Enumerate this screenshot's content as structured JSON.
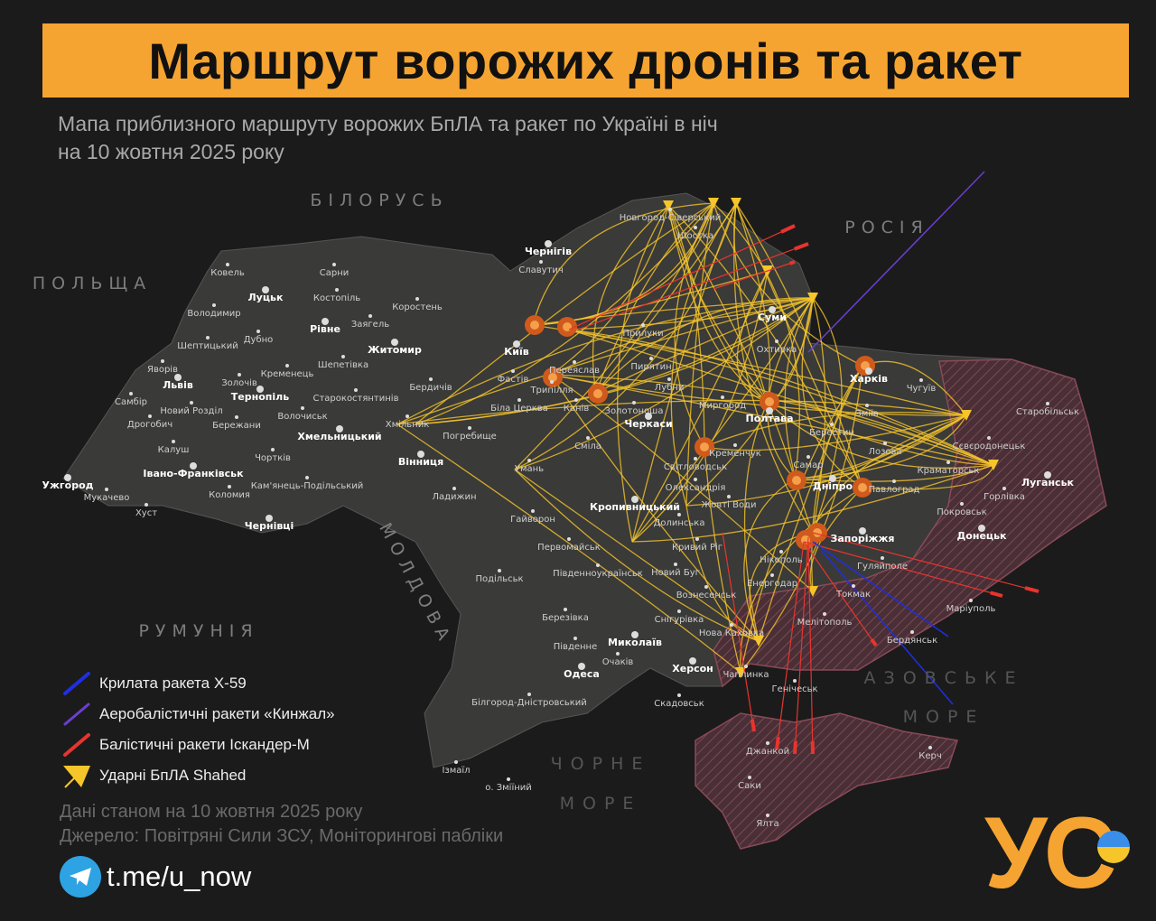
{
  "header": {
    "title": "Маршрут ворожих дронів та ракет",
    "subtitle": "Мапа приблизного маршруту ворожих БпЛА та ракет по Україні в ніч на 10 жовтня 2025 року"
  },
  "countries": [
    "БІЛОРУСЬ",
    "РОСІЯ",
    "ПОЛЬЩА",
    "РУМУНІЯ",
    "МОЛДОВА"
  ],
  "seas": [
    "АЗОВСЬКЕ",
    "МОРЕ",
    "ЧОРНЕ",
    "МОРЕ"
  ],
  "cities": [
    "Ковель",
    "Сарни",
    "Луцьк",
    "Костопіль",
    "Володимир",
    "Рівне",
    "Заягель",
    "Коростень",
    "Чернігів",
    "Славутич",
    "Новгород-Сіверський",
    "Шостка",
    "Шептицький",
    "Дубно",
    "Житомир",
    "Київ",
    "Прилуки",
    "Суми",
    "Охтирка",
    "Яворів",
    "Львів",
    "Кременець",
    "Шепетівка",
    "Бердичів",
    "Переяслав",
    "Пирятин",
    "Лубни",
    "Полтава",
    "Харків",
    "Чугуїв",
    "Самбір",
    "Золочів",
    "Тернопіль",
    "Старокостянтинів",
    "Фастів",
    "Трипілля",
    "Канів",
    "Золотоноша",
    "Дрогобич",
    "Новий Розділ",
    "Бережани",
    "Волочиськ",
    "Хмільник",
    "Біла Церква",
    "Черкаси",
    "Миргород",
    "Кременчук",
    "Берестин",
    "Зміїв",
    "Старобільськ",
    "Сєвєродонецьк",
    "Хмельницький",
    "Погребище",
    "Сміла",
    "Світловодськ",
    "Лозова",
    "Краматорськ",
    "Калуш",
    "Чортків",
    "Вінниця",
    "Умань",
    "Самар",
    "Дніпро",
    "Павлоград",
    "Покровськ",
    "Горлівка",
    "Луганськ",
    "Ужгород",
    "Мукачево",
    "Івано-Франківськ",
    "Кам'янець-Подільський",
    "Ладижин",
    "Олександрія",
    "Жовті Води",
    "Донецьк",
    "Коломия",
    "Хуст",
    "Чернівці",
    "Гайворон",
    "Кропивницький",
    "Долинська",
    "Запоріжжя",
    "Гуляйполе",
    "Первомайськ",
    "Кривий Ріг",
    "Нікополь",
    "Маріуполь",
    "Подільськ",
    "Південноукраїнськ",
    "Новий Буг",
    "Енергодар",
    "Токмак",
    "Мелітополь",
    "Бердянськ",
    "Березівка",
    "Вознесенськ",
    "Снігурівка",
    "Нова Каховка",
    "Південне",
    "Миколаїв",
    "Херсон",
    "Одеса",
    "Очаків",
    "Чаплинка",
    "Генічеськ",
    "Білгород-Дністровський",
    "Скадовськ",
    "Джанкой",
    "Керч",
    "Ізмаїл",
    "о. Зміїний",
    "Саки",
    "Ялта"
  ],
  "legend": [
    {
      "label": "Крилата ракета Х-59",
      "color": "#1f2fe0",
      "icon": "missile-icon"
    },
    {
      "label": "Аеробалістичні ракети «Кинжал»",
      "color": "#6a3fd0",
      "icon": "missile-icon"
    },
    {
      "label": "Балістичні ракети Іскандер-М",
      "color": "#e8342e",
      "icon": "missile-icon"
    },
    {
      "label": "Ударні БпЛА Shahed",
      "color": "#f6c52a",
      "icon": "drone-icon"
    }
  ],
  "footer": {
    "date": "Дані станом на 10 жовтня 2025 року",
    "source": "Джерело: Повітряні Сили ЗСУ, Моніторингові пабліки",
    "telegram": "t.me/u_now"
  },
  "logo": {
    "text": "УС"
  },
  "colors": {
    "accent": "#f6a431",
    "drone": "#f6c52a",
    "ballistic": "#e8342e",
    "cruise": "#1f2fe0",
    "kinzhal": "#6a3fd0",
    "occupied": "#6b3a44"
  }
}
